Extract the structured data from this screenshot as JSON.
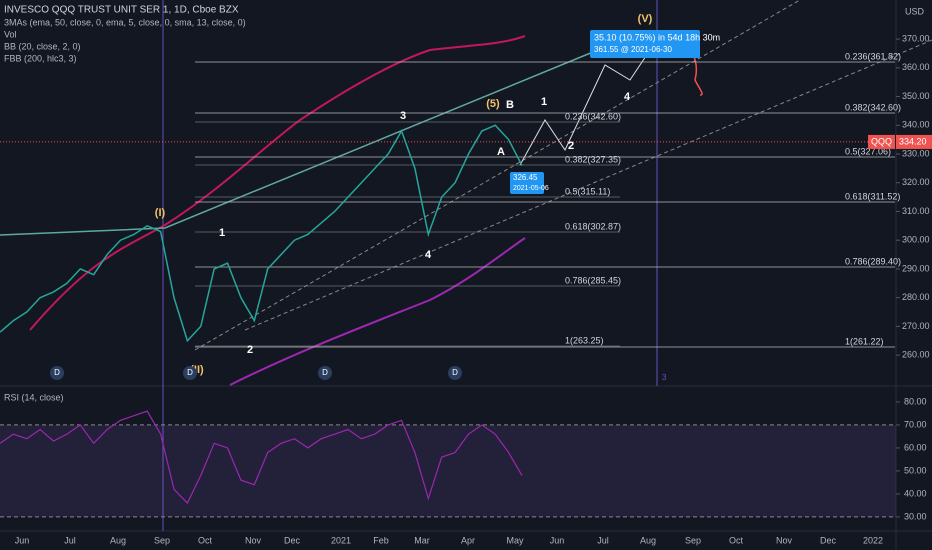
{
  "header": {
    "symbol": "INVESCO QQQ TRUST UNIT SER 1, 1D, Cboe BZX",
    "indicators": [
      "3MAs (ema, 50, close, 0, ema, 5, close, 0, sma, 13, close, 0)",
      "Vol",
      "BB (20, close, 2, 0)",
      "FBB (200, hlc3, 3)"
    ],
    "currency": "USD"
  },
  "price_axis": {
    "ylim": [
      249.6,
      383.6
    ],
    "ticks": [
      {
        "value": 370,
        "label": "370.00"
      },
      {
        "value": 360,
        "label": "360.00"
      },
      {
        "value": 350,
        "label": "350.00"
      },
      {
        "value": 340,
        "label": "340.00"
      },
      {
        "value": 330,
        "label": "330.00"
      },
      {
        "value": 320,
        "label": "320.00"
      },
      {
        "value": 310,
        "label": "310.00"
      },
      {
        "value": 300,
        "label": "300.00"
      },
      {
        "value": 290,
        "label": "290.00"
      },
      {
        "value": 280,
        "label": "280.00"
      },
      {
        "value": 270,
        "label": "270.00"
      },
      {
        "value": 260,
        "label": "260.00"
      }
    ],
    "last": {
      "value": 334.2,
      "label": "334.20"
    },
    "last_symbol": "QQQ"
  },
  "price": {
    "values": [
      268,
      272,
      275,
      280,
      282,
      285,
      290,
      288,
      295,
      300,
      302,
      305,
      303,
      280,
      265,
      270,
      290,
      292,
      280,
      272,
      290,
      295,
      300,
      302,
      306,
      310,
      315,
      320,
      325,
      330,
      338,
      325,
      302,
      315,
      320,
      330,
      338,
      340,
      335,
      326
    ]
  },
  "time_axis": [
    "Jun",
    "Jul",
    "Aug",
    "Sep",
    "Oct",
    "Nov",
    "Dec",
    "2021",
    "Feb",
    "Mar",
    "Apr",
    "May",
    "Jun",
    "Jul",
    "Aug",
    "Sep",
    "Oct",
    "Nov",
    "Dec",
    "2022"
  ],
  "fib_right": [
    "0.236(361.82)",
    "0.382(342.60)",
    "0.5(327.06)",
    "0.618(311.52)",
    "0.786(289.40)",
    "1(261.22)"
  ],
  "fib_mid": [
    "0.236(342.60)",
    "0.382(327.35)",
    "0.5(315.11)",
    "0.618(302.87)",
    "0.786(285.45)",
    "1(263.25)"
  ],
  "waves": [
    "(I)",
    "(II)",
    "1",
    "2",
    "3",
    "4",
    "(5)",
    "B",
    "A",
    "1",
    "2",
    "4",
    "(V)"
  ],
  "dividends": [
    "D",
    "D",
    "D",
    "D"
  ],
  "projection": {
    "change": "35.10 (10.75%) in 54d 18h 30m",
    "target": "361.55 @ 2021-06-30"
  },
  "point": {
    "price": "326.45",
    "date": "2021-05-06"
  },
  "marker": "3",
  "rsi": {
    "title": "RSI (14, close)",
    "ylim": [
      24.3,
      86.5
    ],
    "ticks": [
      {
        "value": 80,
        "label": "80.00"
      },
      {
        "value": 70,
        "label": "70.00"
      },
      {
        "value": 60,
        "label": "60.00"
      },
      {
        "value": 50,
        "label": "50.00"
      },
      {
        "value": 40,
        "label": "40.00"
      },
      {
        "value": 30,
        "label": "30.00"
      }
    ],
    "values": [
      62,
      66,
      64,
      68,
      63,
      66,
      70,
      62,
      68,
      72,
      74,
      76,
      66,
      42,
      36,
      48,
      62,
      60,
      46,
      44,
      58,
      62,
      64,
      60,
      64,
      66,
      68,
      64,
      66,
      70,
      72,
      58,
      38,
      56,
      58,
      66,
      70,
      66,
      58,
      48
    ]
  }
}
